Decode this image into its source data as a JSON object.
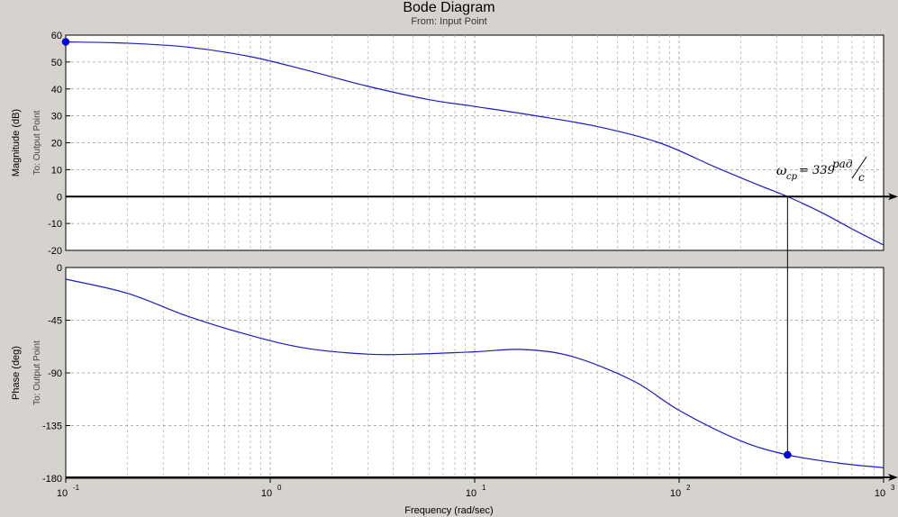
{
  "chart_data": {
    "type": "line",
    "title": "Bode Diagram",
    "subtitle": "From: Input Point",
    "xlabel": "Frequency (rad/sec)",
    "xscale": "log",
    "xlim": [
      0.1,
      1000
    ],
    "x_ticks": [
      {
        "base": "10",
        "exp": "-1"
      },
      {
        "base": "10",
        "exp": "0"
      },
      {
        "base": "10",
        "exp": "1"
      },
      {
        "base": "10",
        "exp": "2"
      },
      {
        "base": "10",
        "exp": "3"
      }
    ],
    "grid": true,
    "magnitude": {
      "ylabel": "Magnitude (dB)",
      "ylabel2": "To: Output Point",
      "ylim": [
        -20,
        60
      ],
      "yticks": [
        60,
        50,
        40,
        30,
        20,
        10,
        0,
        -10,
        -20
      ],
      "x": [
        0.1,
        0.2,
        0.4,
        0.8,
        1.5,
        3,
        6,
        10,
        20,
        40,
        80,
        150,
        250,
        339,
        500,
        700,
        1000
      ],
      "values": [
        57.5,
        57,
        55.5,
        52,
        47,
        41,
        36,
        33.5,
        30,
        26,
        20,
        11,
        4,
        0,
        -6,
        -12,
        -18
      ]
    },
    "phase": {
      "ylabel": "Phase (deg)",
      "ylabel2": "To: Output Point",
      "ylim": [
        -180,
        0
      ],
      "yticks": [
        0,
        -45,
        -90,
        -135,
        -180
      ],
      "x": [
        0.1,
        0.2,
        0.4,
        0.8,
        1.5,
        3,
        5,
        10,
        17,
        30,
        60,
        100,
        200,
        339,
        600,
        1000
      ],
      "values": [
        -10,
        -22,
        -42,
        -58,
        -69,
        -74,
        -74,
        -72,
        -70,
        -76,
        -97,
        -122,
        -148,
        -160,
        -167,
        -171
      ]
    },
    "annotations": {
      "crossover_x": 339,
      "omega_symbol": "ω",
      "omega_sub": "ср",
      "eq_text": "= 339",
      "unit_num": "рад",
      "unit_den": "с"
    },
    "colors": {
      "curve": "#1a1acc",
      "marker": "#0000ff",
      "grid_major": "#999999",
      "grid_minor": "#b8b8b8",
      "axis": "#000000",
      "plot_bg": "#ffffff",
      "fig_bg": "#d6d3ce"
    }
  }
}
